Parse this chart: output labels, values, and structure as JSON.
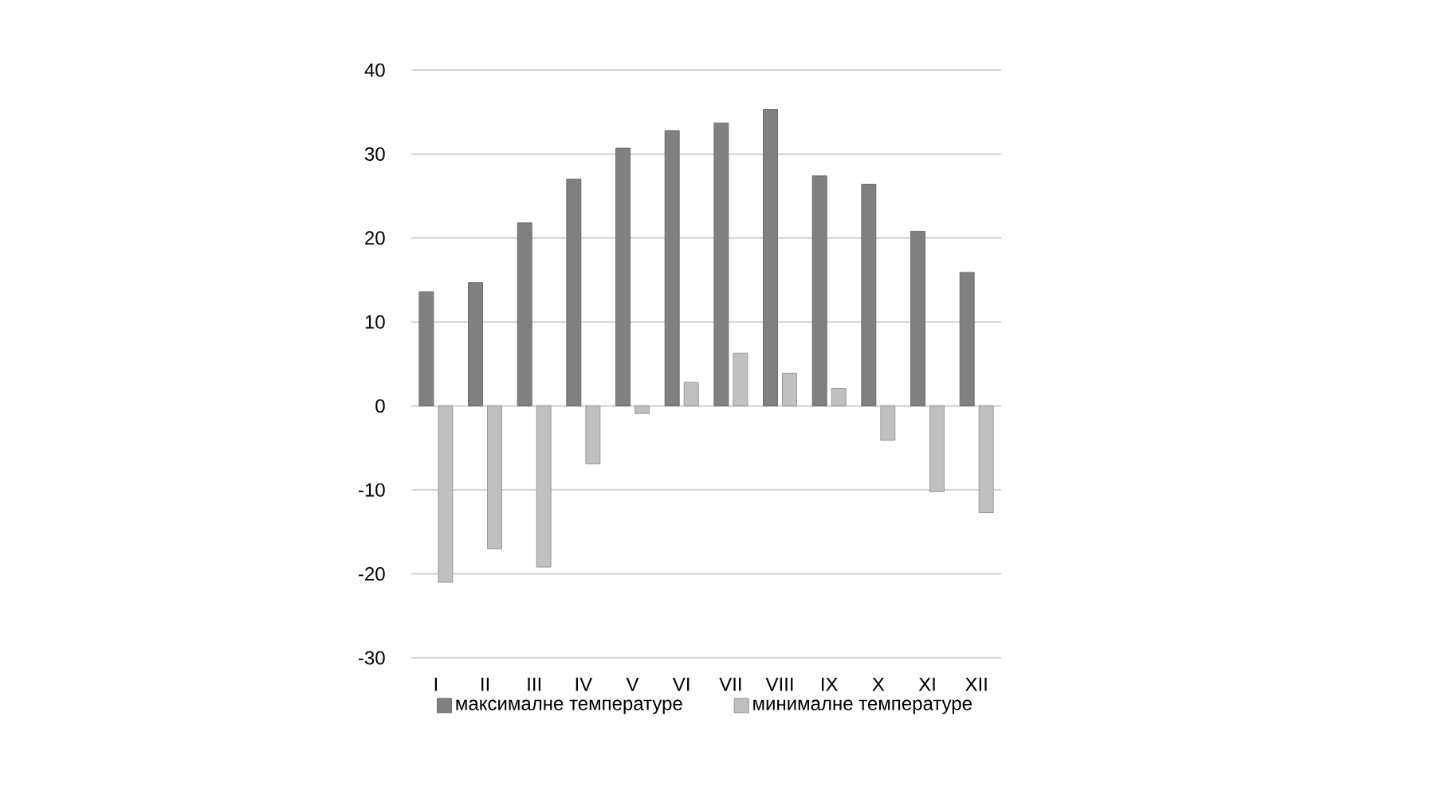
{
  "chart_data": {
    "type": "bar",
    "categories": [
      "I",
      "II",
      "III",
      "IV",
      "V",
      "VI",
      "VII",
      "VIII",
      "IX",
      "X",
      "XI",
      "XII"
    ],
    "series": [
      {
        "name": "максималне температуре",
        "color": "#808080",
        "values": [
          13.6,
          14.7,
          21.8,
          27.0,
          30.7,
          32.8,
          33.7,
          35.3,
          27.4,
          26.4,
          20.8,
          15.9
        ]
      },
      {
        "name": "минималне температуре",
        "color": "#c0c0c0",
        "values": [
          -21.0,
          -17.0,
          -19.2,
          -6.9,
          -0.9,
          2.8,
          6.3,
          3.9,
          2.1,
          -4.1,
          -10.2,
          -12.7
        ]
      }
    ],
    "ylim": [
      -30,
      40
    ],
    "yticks": [
      -30,
      -20,
      -10,
      0,
      10,
      20,
      30,
      40
    ],
    "grid": "y",
    "legend": "bottom"
  }
}
